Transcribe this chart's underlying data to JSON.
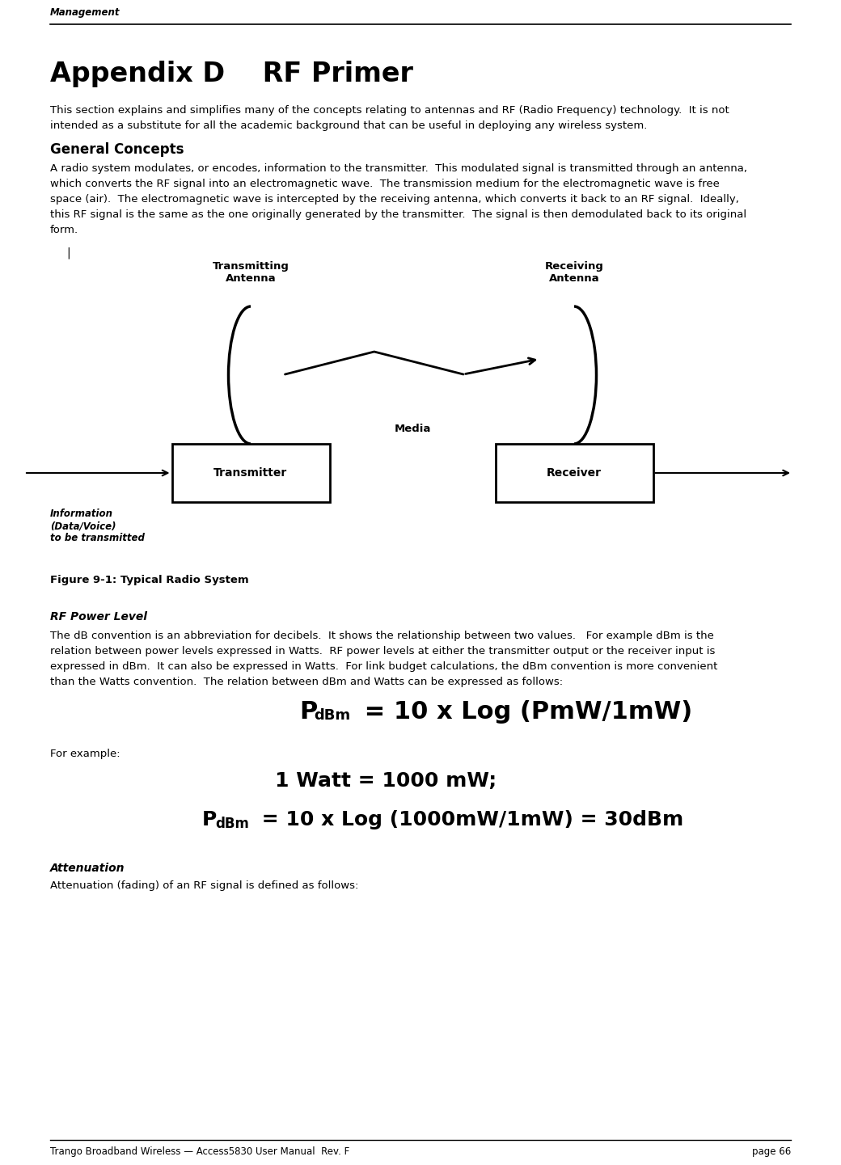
{
  "header_text": "Management",
  "title": "Appendix D    RF Primer",
  "intro_body": "This section explains and simplifies many of the concepts relating to antennas and RF (Radio Frequency) technology.  It is not\nintended as a substitute for all the academic background that can be useful in deploying any wireless system.",
  "section1_heading": "General Concepts",
  "section1_body": "A radio system modulates, or encodes, information to the transmitter.  This modulated signal is transmitted through an antenna,\nwhich converts the RF signal into an electromagnetic wave.  The transmission medium for the electromagnetic wave is free\nspace (air).  The electromagnetic wave is intercepted by the receiving antenna, which converts it back to an RF signal.  Ideally,\nthis RF signal is the same as the one originally generated by the transmitter.  The signal is then demodulated back to its original\nform.",
  "figure_caption": "Figure 9-1: Typical Radio System",
  "section2_heading": "RF Power Level",
  "section2_body": "The dB convention is an abbreviation for decibels.  It shows the relationship between two values.   For example dBm is the\nrelation between power levels expressed in Watts.  RF power levels at either the transmitter output or the receiver input is\nexpressed in dBm.  It can also be expressed in Watts.  For link budget calculations, the dBm convention is more convenient\nthan the Watts convention.  The relation between dBm and Watts can be expressed as follows:",
  "for_example": "For example:",
  "example1": "1 Watt = 1000 mW;",
  "section3_heading": "Attenuation",
  "section3_body": "Attenuation (fading) of an RF signal is defined as follows:",
  "footer_left": "Trango Broadband Wireless — Access5830 User Manual  Rev. F",
  "footer_right": "page 66",
  "bg_color": "#ffffff",
  "text_color": "#000000"
}
